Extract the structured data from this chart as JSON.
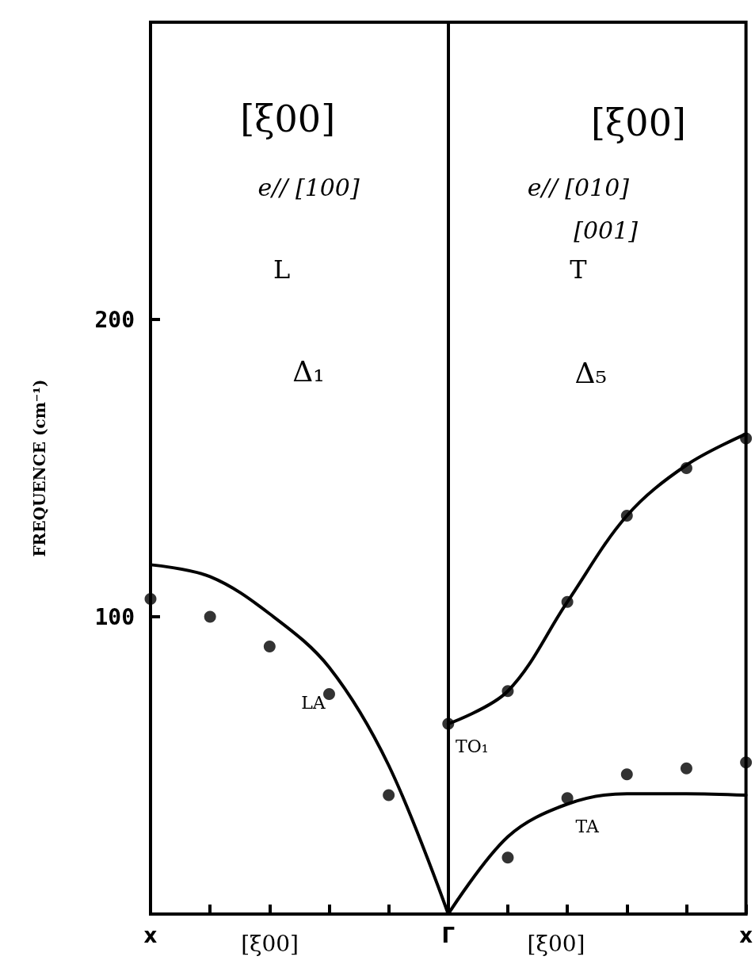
{
  "chart_data": {
    "type": "line",
    "ylabel": "FREQUENCE (cm⁻¹)",
    "categories": [
      "x",
      null,
      null,
      null,
      null,
      "Γ",
      null,
      null,
      null,
      null,
      "x"
    ],
    "ylim": [
      0,
      300
    ],
    "yticks": [
      100,
      200
    ],
    "grid": false,
    "ref_lines": [
      {
        "axis": "x",
        "value": "Γ",
        "color": "#000000",
        "line_style": "solid"
      }
    ],
    "series": [
      {
        "name": "LA",
        "color": "#000000",
        "marker": "none",
        "values": [
          117.5,
          113.5,
          101,
          83,
          50,
          0,
          null,
          null,
          null,
          null,
          null
        ]
      },
      {
        "type": "scatter",
        "color": "#000000",
        "marker": "circle",
        "values": [
          106,
          100,
          90,
          74,
          40,
          null,
          null,
          null,
          null,
          null,
          null
        ]
      },
      {
        "name": "TO₁",
        "color": "#000000",
        "marker": "none",
        "values": [
          null,
          null,
          null,
          null,
          null,
          64,
          75,
          105,
          134,
          151,
          161.5
        ]
      },
      {
        "type": "scatter",
        "color": "#000000",
        "marker": "circle",
        "values": [
          null,
          null,
          null,
          null,
          null,
          64,
          75,
          105,
          134,
          150,
          160
        ]
      },
      {
        "name": "TA",
        "color": "#000000",
        "marker": "none",
        "values": [
          null,
          null,
          null,
          null,
          null,
          0,
          26,
          37,
          40.5,
          40.5,
          40
        ]
      },
      {
        "type": "scatter",
        "color": "#000000",
        "marker": "circle",
        "values": [
          null,
          null,
          null,
          null,
          null,
          null,
          19,
          39,
          47,
          49,
          51
        ]
      }
    ],
    "annotations": [
      "[ξ00]",
      "e// [100]",
      "L",
      "Δ₁",
      "[ξ00]",
      "e// [010]",
      "[001]",
      "T",
      "Δ₅",
      "[ξ00]",
      "[ξ00]"
    ]
  }
}
